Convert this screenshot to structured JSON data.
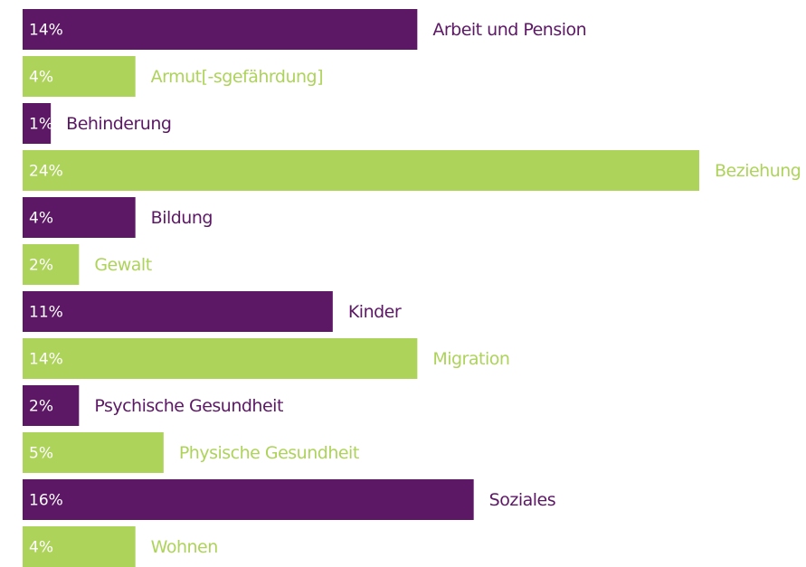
{
  "chart_data": {
    "type": "hbar",
    "categories": [
      "Arbeit und Pension",
      "Armut[-sgefährdung]",
      "Behinderung",
      "Beziehung",
      "Bildung",
      "Gewalt",
      "Kinder",
      "Migration",
      "Psychische Gesundheit",
      "Physische Gesundheit",
      "Soziales",
      "Wohnen"
    ],
    "values": [
      14,
      4,
      1,
      24,
      4,
      2,
      11,
      14,
      2,
      5,
      16,
      4
    ],
    "value_labels": [
      "14%",
      "4%",
      "1%",
      "24%",
      "4%",
      "2%",
      "11%",
      "14%",
      "2%",
      "5%",
      "16%",
      "4%"
    ],
    "colors": [
      "#5c1865",
      "#aed35b",
      "#5c1865",
      "#aed35b",
      "#5c1865",
      "#aed35b",
      "#5c1865",
      "#aed35b",
      "#5c1865",
      "#aed35b",
      "#5c1865",
      "#aed35b"
    ]
  }
}
